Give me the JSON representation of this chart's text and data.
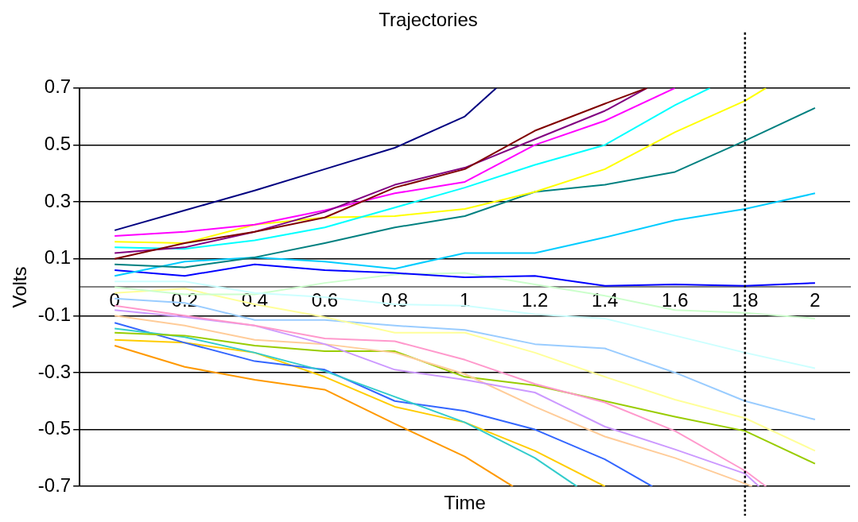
{
  "chart_data": {
    "type": "line",
    "title": "Trajectories",
    "xlabel": "Time",
    "ylabel": "Volts",
    "x": [
      0,
      0.2,
      0.4,
      0.6,
      0.8,
      1,
      1.2,
      1.4,
      1.6,
      1.8,
      2
    ],
    "xlim": [
      -0.1,
      2.1
    ],
    "xticks": [
      0,
      0.2,
      0.4,
      0.6,
      0.8,
      1,
      1.2,
      1.4,
      1.6,
      1.8,
      2
    ],
    "ylim": [
      -0.7,
      0.7
    ],
    "yticks": [
      -0.7,
      -0.5,
      -0.3,
      -0.1,
      0.1,
      0.3,
      0.5,
      0.7
    ],
    "grid": "y",
    "legend": false,
    "marker": "none",
    "ref_lines": [
      {
        "axis": "x",
        "value": 1.8,
        "color": "#000000",
        "line_style": "dotted"
      }
    ],
    "series": [
      {
        "color": "#000080",
        "x": [
          0,
          0.2,
          0.4,
          0.6,
          0.8,
          1,
          1.09
        ],
        "values": [
          0.2,
          0.27,
          0.34,
          0.415,
          0.49,
          0.6,
          0.7
        ]
      },
      {
        "color": "#800000",
        "x": [
          0,
          0.2,
          0.4,
          0.6,
          0.8,
          1,
          1.2,
          1.4,
          1.52
        ],
        "values": [
          0.1,
          0.155,
          0.195,
          0.245,
          0.35,
          0.415,
          0.55,
          0.645,
          0.7
        ]
      },
      {
        "color": "#800080",
        "x": [
          0,
          0.2,
          0.4,
          0.6,
          0.8,
          1,
          1.2,
          1.4,
          1.52
        ],
        "values": [
          0.12,
          0.14,
          0.195,
          0.265,
          0.36,
          0.42,
          0.52,
          0.62,
          0.7
        ]
      },
      {
        "color": "#ff00ff",
        "x": [
          0,
          0.2,
          0.4,
          0.6,
          0.8,
          1,
          1.2,
          1.4,
          1.6
        ],
        "values": [
          0.18,
          0.195,
          0.22,
          0.27,
          0.33,
          0.37,
          0.5,
          0.585,
          0.7
        ]
      },
      {
        "color": "#00ffff",
        "x": [
          0,
          0.2,
          0.4,
          0.6,
          0.8,
          1,
          1.2,
          1.4,
          1.6,
          1.7
        ],
        "values": [
          0.14,
          0.135,
          0.165,
          0.21,
          0.28,
          0.35,
          0.43,
          0.5,
          0.64,
          0.7
        ]
      },
      {
        "color": "#ffff00",
        "x": [
          0,
          0.2,
          0.4,
          0.6,
          0.8,
          1,
          1.2,
          1.4,
          1.6,
          1.8,
          1.86
        ],
        "values": [
          0.16,
          0.155,
          0.22,
          0.245,
          0.25,
          0.275,
          0.335,
          0.415,
          0.545,
          0.655,
          0.7
        ]
      },
      {
        "color": "#008080",
        "values": [
          0.08,
          0.07,
          0.105,
          0.155,
          0.21,
          0.25,
          0.335,
          0.36,
          0.405,
          0.515,
          0.63
        ]
      },
      {
        "color": "#00ccff",
        "values": [
          0.04,
          0.09,
          0.105,
          0.09,
          0.065,
          0.12,
          0.12,
          0.175,
          0.235,
          0.275,
          0.33
        ]
      },
      {
        "color": "#0000ff",
        "values": [
          0.06,
          0.04,
          0.08,
          0.06,
          0.05,
          0.035,
          0.04,
          0.005,
          0.01,
          0.005,
          0.015
        ]
      },
      {
        "color": "#ccffff",
        "values": [
          0.02,
          0.02,
          -0.02,
          -0.035,
          -0.06,
          -0.065,
          -0.095,
          -0.11,
          -0.17,
          -0.23,
          -0.285
        ]
      },
      {
        "color": "#ccffcc",
        "values": [
          0.0,
          -0.025,
          -0.025,
          0.015,
          0.045,
          0.05,
          0.01,
          -0.03,
          -0.08,
          -0.09,
          -0.11
        ]
      },
      {
        "color": "#ffff99",
        "values": [
          -0.02,
          -0.005,
          -0.06,
          -0.105,
          -0.16,
          -0.16,
          -0.23,
          -0.315,
          -0.395,
          -0.46,
          -0.575
        ]
      },
      {
        "color": "#99ccff",
        "values": [
          -0.04,
          -0.055,
          -0.115,
          -0.115,
          -0.135,
          -0.15,
          -0.2,
          -0.215,
          -0.3,
          -0.4,
          -0.465
        ]
      },
      {
        "color": "#ff99cc",
        "x": [
          0,
          0.2,
          0.4,
          0.6,
          0.8,
          1,
          1.2,
          1.4,
          1.6,
          1.8,
          1.86
        ],
        "values": [
          -0.065,
          -0.1,
          -0.135,
          -0.18,
          -0.19,
          -0.255,
          -0.34,
          -0.405,
          -0.505,
          -0.645,
          -0.7
        ]
      },
      {
        "color": "#cc99ff",
        "x": [
          0,
          0.2,
          0.4,
          0.6,
          0.8,
          1,
          1.2,
          1.4,
          1.6,
          1.8,
          1.84
        ],
        "values": [
          -0.08,
          -0.105,
          -0.135,
          -0.2,
          -0.29,
          -0.325,
          -0.37,
          -0.49,
          -0.57,
          -0.655,
          -0.7
        ]
      },
      {
        "color": "#ffcc99",
        "x": [
          0,
          0.2,
          0.4,
          0.6,
          0.8,
          1,
          1.2,
          1.4,
          1.6,
          1.8,
          1.82
        ],
        "values": [
          -0.1,
          -0.135,
          -0.185,
          -0.2,
          -0.23,
          -0.305,
          -0.42,
          -0.525,
          -0.6,
          -0.69,
          -0.7
        ]
      },
      {
        "color": "#99cc00",
        "values": [
          -0.16,
          -0.17,
          -0.205,
          -0.225,
          -0.225,
          -0.315,
          -0.345,
          -0.4,
          -0.455,
          -0.505,
          -0.62
        ]
      },
      {
        "color": "#33cccc",
        "x": [
          0,
          0.2,
          0.4,
          0.6,
          0.8,
          1,
          1.2,
          1.32
        ],
        "values": [
          -0.145,
          -0.175,
          -0.23,
          -0.295,
          -0.385,
          -0.475,
          -0.6,
          -0.7
        ]
      },
      {
        "color": "#3366ff",
        "x": [
          0,
          0.2,
          0.4,
          0.6,
          0.8,
          1,
          1.2,
          1.4,
          1.535
        ],
        "values": [
          -0.125,
          -0.195,
          -0.26,
          -0.29,
          -0.4,
          -0.435,
          -0.5,
          -0.605,
          -0.7
        ]
      },
      {
        "color": "#ffcc00",
        "x": [
          0,
          0.2,
          0.4,
          0.6,
          0.8,
          1,
          1.2,
          1.4
        ],
        "values": [
          -0.185,
          -0.195,
          -0.23,
          -0.315,
          -0.42,
          -0.475,
          -0.575,
          -0.7
        ]
      },
      {
        "color": "#ff9900",
        "x": [
          0,
          0.2,
          0.4,
          0.6,
          0.8,
          1,
          1.137
        ],
        "values": [
          -0.205,
          -0.28,
          -0.325,
          -0.36,
          -0.48,
          -0.595,
          -0.7
        ]
      }
    ]
  }
}
